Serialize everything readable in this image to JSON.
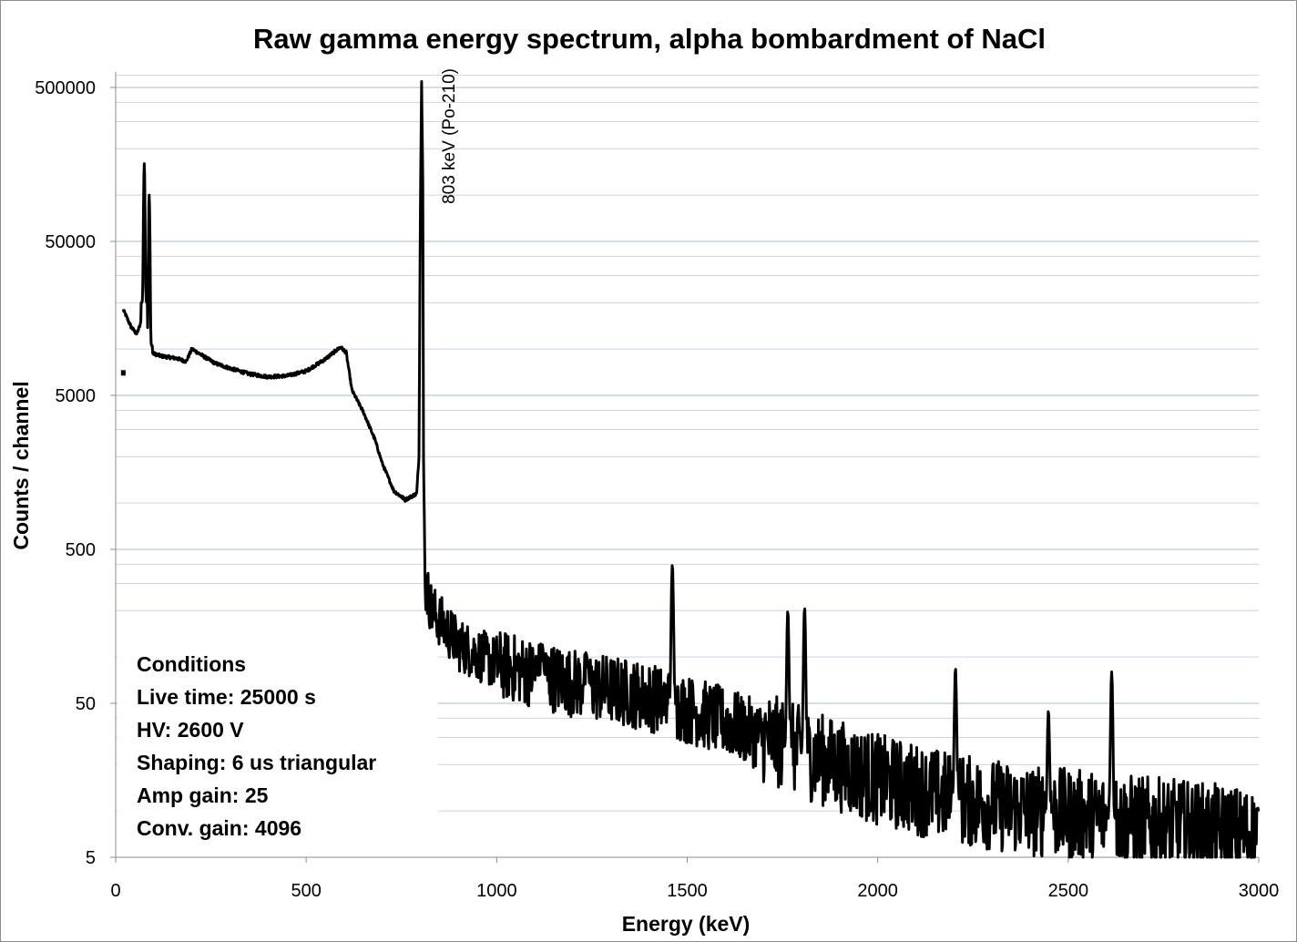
{
  "chart_data": {
    "type": "line",
    "title": "Raw gamma energy spectrum, alpha bombardment of NaCl",
    "xlabel": "Energy (keV)",
    "ylabel": "Counts / channel",
    "xlim": [
      0,
      3000
    ],
    "ylim": [
      5,
      1000000
    ],
    "yscale": "log",
    "x_ticks": [
      0,
      500,
      1000,
      1500,
      2000,
      2500,
      3000
    ],
    "x_tick_labels": [
      "0",
      "500",
      "1000",
      "1500",
      "2000",
      "2500",
      "3000"
    ],
    "y_ticks": [
      5,
      50,
      500,
      5000,
      50000,
      500000
    ],
    "y_tick_labels": [
      "5",
      "50",
      "500",
      "5000",
      "50000",
      "500000"
    ],
    "grid": "horizontal minor gridlines",
    "annotation": {
      "text": "803 keV (Po-210)",
      "x": 803
    },
    "conditions": {
      "heading": "Conditions",
      "lines": [
        "Live time: 25000 s",
        "HV: 2600 V",
        "Shaping: 6 us triangular",
        "Amp gain: 25",
        "Conv. gain: 4096"
      ]
    },
    "series": [
      {
        "name": "Counts",
        "color": "#000000",
        "continuum": [
          [
            20,
            18000
          ],
          [
            40,
            14000
          ],
          [
            55,
            12500
          ],
          [
            65,
            14500
          ],
          [
            75,
            20000
          ],
          [
            90,
            9500
          ],
          [
            120,
            9000
          ],
          [
            160,
            8700
          ],
          [
            185,
            8300
          ],
          [
            200,
            10000
          ],
          [
            230,
            9000
          ],
          [
            260,
            8100
          ],
          [
            300,
            7500
          ],
          [
            350,
            6900
          ],
          [
            400,
            6600
          ],
          [
            450,
            6700
          ],
          [
            500,
            7200
          ],
          [
            550,
            8600
          ],
          [
            590,
            10300
          ],
          [
            605,
            9500
          ],
          [
            620,
            5400
          ],
          [
            650,
            3900
          ],
          [
            680,
            2600
          ],
          [
            700,
            1800
          ],
          [
            730,
            1200
          ],
          [
            760,
            1050
          ],
          [
            790,
            1150
          ],
          [
            796,
            2000
          ],
          [
            800,
            100000
          ],
          [
            803,
            560000
          ],
          [
            806,
            120000
          ],
          [
            808,
            2000
          ],
          [
            812,
            300
          ],
          [
            830,
            200
          ],
          [
            900,
            120
          ],
          [
            1000,
            90
          ],
          [
            1200,
            68
          ],
          [
            1400,
            55
          ],
          [
            1600,
            38
          ],
          [
            1800,
            24
          ],
          [
            2000,
            16
          ],
          [
            2200,
            12
          ],
          [
            2400,
            10
          ],
          [
            2600,
            9
          ],
          [
            2800,
            8
          ],
          [
            3000,
            7
          ]
        ],
        "peaks": [
          [
            75,
            160000
          ],
          [
            88,
            100000
          ],
          [
            1120,
            120
          ],
          [
            1238,
            95
          ],
          [
            1461,
            400
          ],
          [
            1764,
            200
          ],
          [
            1808,
            210
          ],
          [
            2204,
            85
          ],
          [
            2448,
            45
          ],
          [
            2614,
            80
          ]
        ],
        "low_point": [
          20,
          7000
        ]
      }
    ]
  }
}
